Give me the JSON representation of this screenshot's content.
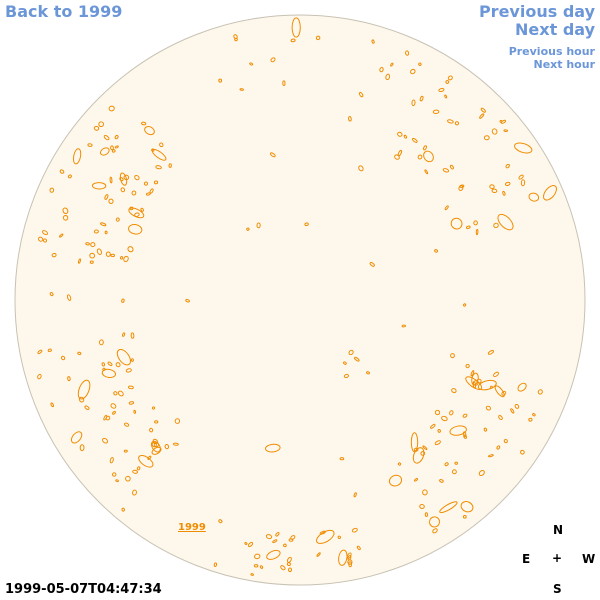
{
  "nav": {
    "back": "Back to 1999",
    "previous_day": "Previous day",
    "next_day": "Next day",
    "previous_hour": "Previous hour",
    "next_hour": "Next hour"
  },
  "sun": {
    "year_label": "1999",
    "timestamp": "1999-05-07T04:47:34",
    "disk_fill": "#fef8ec",
    "disk_stroke": "#c8c2b4",
    "contour_color": "#f08c00"
  },
  "compass": {
    "north": "N",
    "east": "E",
    "center": "+",
    "west": "W",
    "south": "S"
  }
}
